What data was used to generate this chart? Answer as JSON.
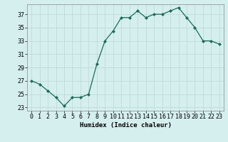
{
  "x": [
    0,
    1,
    2,
    3,
    4,
    5,
    6,
    7,
    8,
    9,
    10,
    11,
    12,
    13,
    14,
    15,
    16,
    17,
    18,
    19,
    20,
    21,
    22,
    23
  ],
  "y": [
    27,
    26.5,
    25.5,
    24.5,
    23.2,
    24.5,
    24.5,
    25,
    29.5,
    33,
    34.5,
    36.5,
    36.5,
    37.5,
    36.5,
    37,
    37,
    37.5,
    38,
    36.5,
    35,
    33,
    33,
    32.5
  ],
  "line_color": "#1a6b5a",
  "marker_color": "#1a6b5a",
  "bg_color": "#d5efef",
  "grid_color": "#b8d8d8",
  "xlabel": "Humidex (Indice chaleur)",
  "ylim": [
    22.5,
    38.5
  ],
  "xlim": [
    -0.5,
    23.5
  ],
  "yticks": [
    23,
    25,
    27,
    29,
    31,
    33,
    35,
    37
  ],
  "xtick_labels": [
    "0",
    "1",
    "2",
    "3",
    "4",
    "5",
    "6",
    "7",
    "8",
    "9",
    "10",
    "11",
    "12",
    "13",
    "14",
    "15",
    "16",
    "17",
    "18",
    "19",
    "20",
    "21",
    "22",
    "23"
  ],
  "label_fontsize": 6.5,
  "tick_fontsize": 6.0
}
